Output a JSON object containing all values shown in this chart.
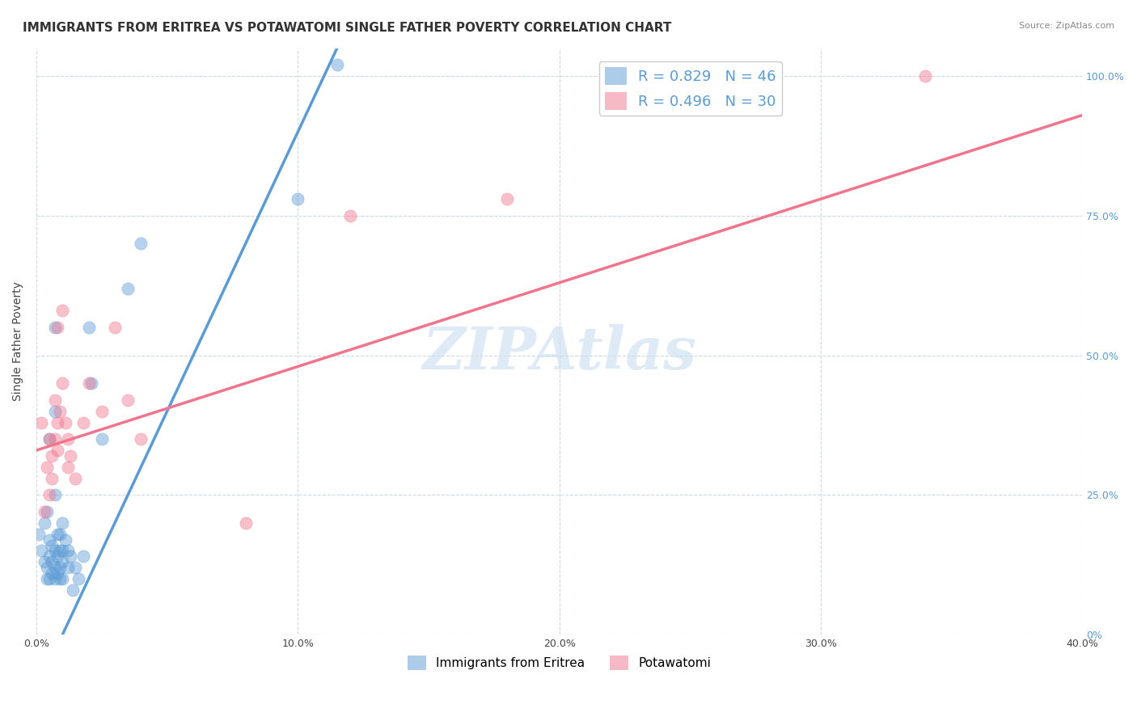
{
  "title": "IMMIGRANTS FROM ERITREA VS POTAWATOMI SINGLE FATHER POVERTY CORRELATION CHART",
  "source": "Source: ZipAtlas.com",
  "ylabel": "Single Father Poverty",
  "xlim": [
    0.0,
    0.4
  ],
  "ylim": [
    0.0,
    1.05
  ],
  "xtick_labels": [
    "0.0%",
    "10.0%",
    "20.0%",
    "30.0%",
    "40.0%"
  ],
  "xtick_vals": [
    0.0,
    0.1,
    0.2,
    0.3,
    0.4
  ],
  "ytick_labels_right": [
    "0%",
    "25.0%",
    "50.0%",
    "75.0%",
    "100.0%"
  ],
  "ytick_vals": [
    0.0,
    0.25,
    0.5,
    0.75,
    1.0
  ],
  "legend_top": [
    {
      "label": "R = 0.829   N = 46",
      "color": "#a8c8f0"
    },
    {
      "label": "R = 0.496   N = 30",
      "color": "#f5a8b8"
    }
  ],
  "legend_bottom": [
    "Immigrants from Eritrea",
    "Potawatomi"
  ],
  "watermark": "ZIPAtlas",
  "watermark_color": "#c8dff0",
  "blue_color": "#5b9bd5",
  "pink_color": "#f0748c",
  "blue_scatter": [
    [
      0.001,
      0.18
    ],
    [
      0.002,
      0.15
    ],
    [
      0.003,
      0.2
    ],
    [
      0.003,
      0.13
    ],
    [
      0.004,
      0.22
    ],
    [
      0.004,
      0.12
    ],
    [
      0.004,
      0.1
    ],
    [
      0.005,
      0.35
    ],
    [
      0.005,
      0.17
    ],
    [
      0.005,
      0.14
    ],
    [
      0.005,
      0.1
    ],
    [
      0.006,
      0.16
    ],
    [
      0.006,
      0.13
    ],
    [
      0.006,
      0.11
    ],
    [
      0.007,
      0.55
    ],
    [
      0.007,
      0.4
    ],
    [
      0.007,
      0.25
    ],
    [
      0.007,
      0.15
    ],
    [
      0.007,
      0.12
    ],
    [
      0.007,
      0.1
    ],
    [
      0.008,
      0.18
    ],
    [
      0.008,
      0.14
    ],
    [
      0.008,
      0.11
    ],
    [
      0.009,
      0.18
    ],
    [
      0.009,
      0.15
    ],
    [
      0.009,
      0.12
    ],
    [
      0.009,
      0.1
    ],
    [
      0.01,
      0.2
    ],
    [
      0.01,
      0.15
    ],
    [
      0.01,
      0.13
    ],
    [
      0.01,
      0.1
    ],
    [
      0.011,
      0.17
    ],
    [
      0.012,
      0.15
    ],
    [
      0.012,
      0.12
    ],
    [
      0.013,
      0.14
    ],
    [
      0.014,
      0.08
    ],
    [
      0.015,
      0.12
    ],
    [
      0.016,
      0.1
    ],
    [
      0.018,
      0.14
    ],
    [
      0.02,
      0.55
    ],
    [
      0.021,
      0.45
    ],
    [
      0.025,
      0.35
    ],
    [
      0.035,
      0.62
    ],
    [
      0.04,
      0.7
    ],
    [
      0.1,
      0.78
    ],
    [
      0.115,
      1.02
    ]
  ],
  "pink_scatter": [
    [
      0.002,
      0.38
    ],
    [
      0.003,
      0.22
    ],
    [
      0.004,
      0.3
    ],
    [
      0.005,
      0.35
    ],
    [
      0.005,
      0.25
    ],
    [
      0.006,
      0.32
    ],
    [
      0.006,
      0.28
    ],
    [
      0.007,
      0.42
    ],
    [
      0.007,
      0.35
    ],
    [
      0.008,
      0.38
    ],
    [
      0.008,
      0.33
    ],
    [
      0.008,
      0.55
    ],
    [
      0.009,
      0.4
    ],
    [
      0.01,
      0.58
    ],
    [
      0.01,
      0.45
    ],
    [
      0.011,
      0.38
    ],
    [
      0.012,
      0.35
    ],
    [
      0.012,
      0.3
    ],
    [
      0.013,
      0.32
    ],
    [
      0.015,
      0.28
    ],
    [
      0.018,
      0.38
    ],
    [
      0.02,
      0.45
    ],
    [
      0.025,
      0.4
    ],
    [
      0.03,
      0.55
    ],
    [
      0.035,
      0.42
    ],
    [
      0.04,
      0.35
    ],
    [
      0.08,
      0.2
    ],
    [
      0.12,
      0.75
    ],
    [
      0.18,
      0.78
    ],
    [
      0.34,
      1.0
    ]
  ],
  "blue_line": [
    [
      0.0,
      -0.1
    ],
    [
      0.115,
      1.05
    ]
  ],
  "pink_line": [
    [
      0.0,
      0.33
    ],
    [
      0.4,
      0.93
    ]
  ],
  "background_color": "#ffffff",
  "grid_color": "#d0d8e0",
  "title_fontsize": 11,
  "axis_label_fontsize": 10,
  "tick_fontsize": 9
}
